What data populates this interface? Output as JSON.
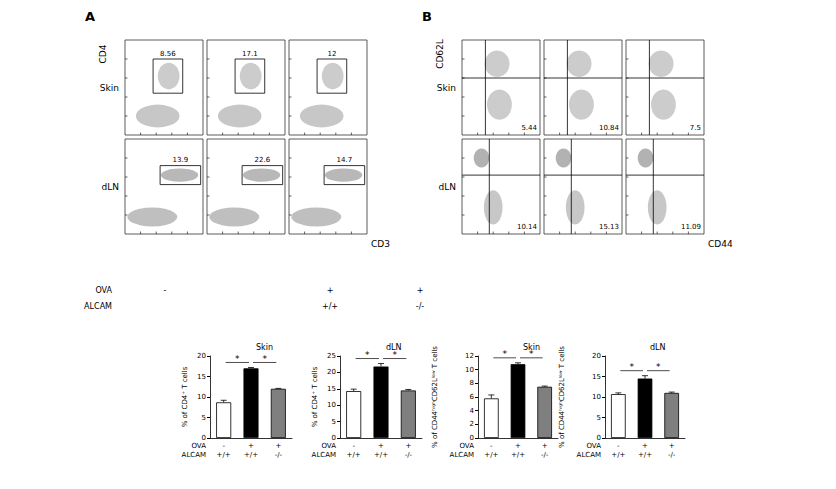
{
  "chart_data": [
    {
      "type": "bar",
      "title": "Skin",
      "ylabel": "% of CD4⁺ T cells",
      "row_labels": [
        "OVA",
        "ALCAM"
      ],
      "categories": [
        [
          "-",
          "+/+"
        ],
        [
          "+",
          "+/+"
        ],
        [
          "+",
          "-/-"
        ]
      ],
      "values": [
        8.7,
        17.0,
        12.0
      ],
      "errors": [
        0.5,
        0.2,
        0.1
      ],
      "colors": [
        "#ffffff",
        "#000000",
        "#7f7f7f"
      ],
      "ylim": [
        0,
        20
      ],
      "yticks": [
        0,
        5,
        10,
        15,
        20
      ],
      "significance": [
        {
          "between": [
            0,
            1
          ],
          "label": "*"
        },
        {
          "between": [
            1,
            2
          ],
          "label": "*"
        }
      ]
    },
    {
      "type": "bar",
      "title": "dLN",
      "ylabel": "% of CD4⁺ T cells",
      "row_labels": [
        "OVA",
        "ALCAM"
      ],
      "categories": [
        [
          "-",
          "+/+"
        ],
        [
          "+",
          "+/+"
        ],
        [
          "+",
          "-/-"
        ]
      ],
      "values": [
        14.3,
        21.8,
        14.5
      ],
      "errors": [
        0.6,
        0.9,
        0.3
      ],
      "colors": [
        "#ffffff",
        "#000000",
        "#7f7f7f"
      ],
      "ylim": [
        0,
        25
      ],
      "yticks": [
        0,
        5,
        10,
        15,
        20,
        25
      ],
      "significance": [
        {
          "between": [
            0,
            1
          ],
          "label": "*"
        },
        {
          "between": [
            1,
            2
          ],
          "label": "*"
        }
      ]
    },
    {
      "type": "bar",
      "title": "Skin",
      "ylabel": "% of CD44ʰⁱᵍʰCD62Lˡᵒʷ T cells",
      "row_labels": [
        "OVA",
        "ALCAM"
      ],
      "categories": [
        [
          "-",
          "+/+"
        ],
        [
          "+",
          "+/+"
        ],
        [
          "+",
          "-/-"
        ]
      ],
      "values": [
        5.8,
        10.8,
        7.5
      ],
      "errors": [
        0.5,
        0.2,
        0.1
      ],
      "colors": [
        "#ffffff",
        "#000000",
        "#7f7f7f"
      ],
      "ylim": [
        0,
        12
      ],
      "yticks": [
        0,
        2,
        4,
        6,
        8,
        10,
        12
      ],
      "significance": [
        {
          "between": [
            0,
            1
          ],
          "label": "*"
        },
        {
          "between": [
            1,
            2
          ],
          "label": "*"
        }
      ]
    },
    {
      "type": "bar",
      "title": "dLN",
      "ylabel": "% of CD44ʰⁱᵍʰCD62Lˡᵒʷ T cells",
      "row_labels": [
        "OVA",
        "ALCAM"
      ],
      "categories": [
        [
          "-",
          "+/+"
        ],
        [
          "+",
          "+/+"
        ],
        [
          "+",
          "-/-"
        ]
      ],
      "values": [
        10.7,
        14.5,
        11.0
      ],
      "errors": [
        0.3,
        0.7,
        0.2
      ],
      "colors": [
        "#ffffff",
        "#000000",
        "#7f7f7f"
      ],
      "ylim": [
        0,
        20
      ],
      "yticks": [
        0,
        5,
        10,
        15,
        20
      ],
      "significance": [
        {
          "between": [
            0,
            1
          ],
          "label": "*"
        },
        {
          "between": [
            1,
            2
          ],
          "label": "*"
        }
      ]
    }
  ],
  "flow_panels": [
    {
      "letter": "A",
      "x_label": "CD3",
      "y_label": "CD4",
      "rows": [
        {
          "label": "Skin",
          "values": [
            8.56,
            17.1,
            12
          ]
        },
        {
          "label": "dLN",
          "values": [
            13.9,
            22.6,
            14.7
          ]
        }
      ]
    },
    {
      "letter": "B",
      "x_label": "CD44",
      "y_label": "CD62L",
      "rows": [
        {
          "label": "Skin",
          "values": [
            5.44,
            10.84,
            7.5
          ]
        },
        {
          "label": "dLN",
          "values": [
            10.14,
            15.13,
            11.09
          ]
        }
      ]
    }
  ],
  "conditions": [
    {
      "label": "OVA",
      "values": [
        "-",
        "+",
        "+"
      ]
    },
    {
      "label": "ALCAM",
      "values": [
        null,
        "+/+",
        "-/-"
      ]
    }
  ]
}
